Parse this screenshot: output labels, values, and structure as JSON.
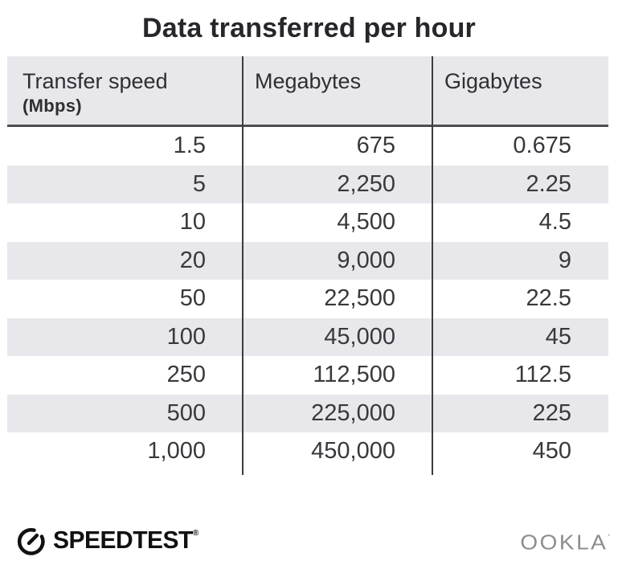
{
  "title": "Data transferred per hour",
  "table": {
    "headers": [
      {
        "label": "Transfer speed",
        "sublabel": "(Mbps)"
      },
      {
        "label": "Megabytes"
      },
      {
        "label": "Gigabytes"
      }
    ],
    "rows": [
      [
        "1.5",
        "675",
        "0.675"
      ],
      [
        "5",
        "2,250",
        "2.25"
      ],
      [
        "10",
        "4,500",
        "4.5"
      ],
      [
        "20",
        "9,000",
        "9"
      ],
      [
        "50",
        "22,500",
        "22.5"
      ],
      [
        "100",
        "45,000",
        "45"
      ],
      [
        "250",
        "112,500",
        "112.5"
      ],
      [
        "500",
        "225,000",
        "225"
      ],
      [
        "1,000",
        "450,000",
        "450"
      ]
    ]
  },
  "footer": {
    "speedtest_label": "SPEEDTEST",
    "speedtest_reg": "®",
    "ookla_label": "OOKLA",
    "ookla_mark": "’"
  },
  "colors": {
    "stripe": "#e8e8ec",
    "header_bg": "#e8e8ec",
    "divider": "#3d3d40",
    "header_underline": "#4e4e51",
    "text": "#38383d",
    "title_text": "#26262b",
    "ookla_gray": "#8d8d90",
    "speedtest_black": "#111114"
  },
  "chart_data": {
    "type": "table",
    "title": "Data transferred per hour",
    "columns": [
      "Transfer speed (Mbps)",
      "Megabytes",
      "Gigabytes"
    ],
    "rows": [
      [
        1.5,
        675,
        0.675
      ],
      [
        5,
        2250,
        2.25
      ],
      [
        10,
        4500,
        4.5
      ],
      [
        20,
        9000,
        9
      ],
      [
        50,
        22500,
        22.5
      ],
      [
        100,
        45000,
        45
      ],
      [
        250,
        112500,
        112.5
      ],
      [
        500,
        225000,
        225
      ],
      [
        1000,
        450000,
        450
      ]
    ],
    "layout": {
      "row_striping": true,
      "stripe_color": "#e8e8ec",
      "column_alignment": [
        "right",
        "right",
        "right"
      ]
    }
  }
}
